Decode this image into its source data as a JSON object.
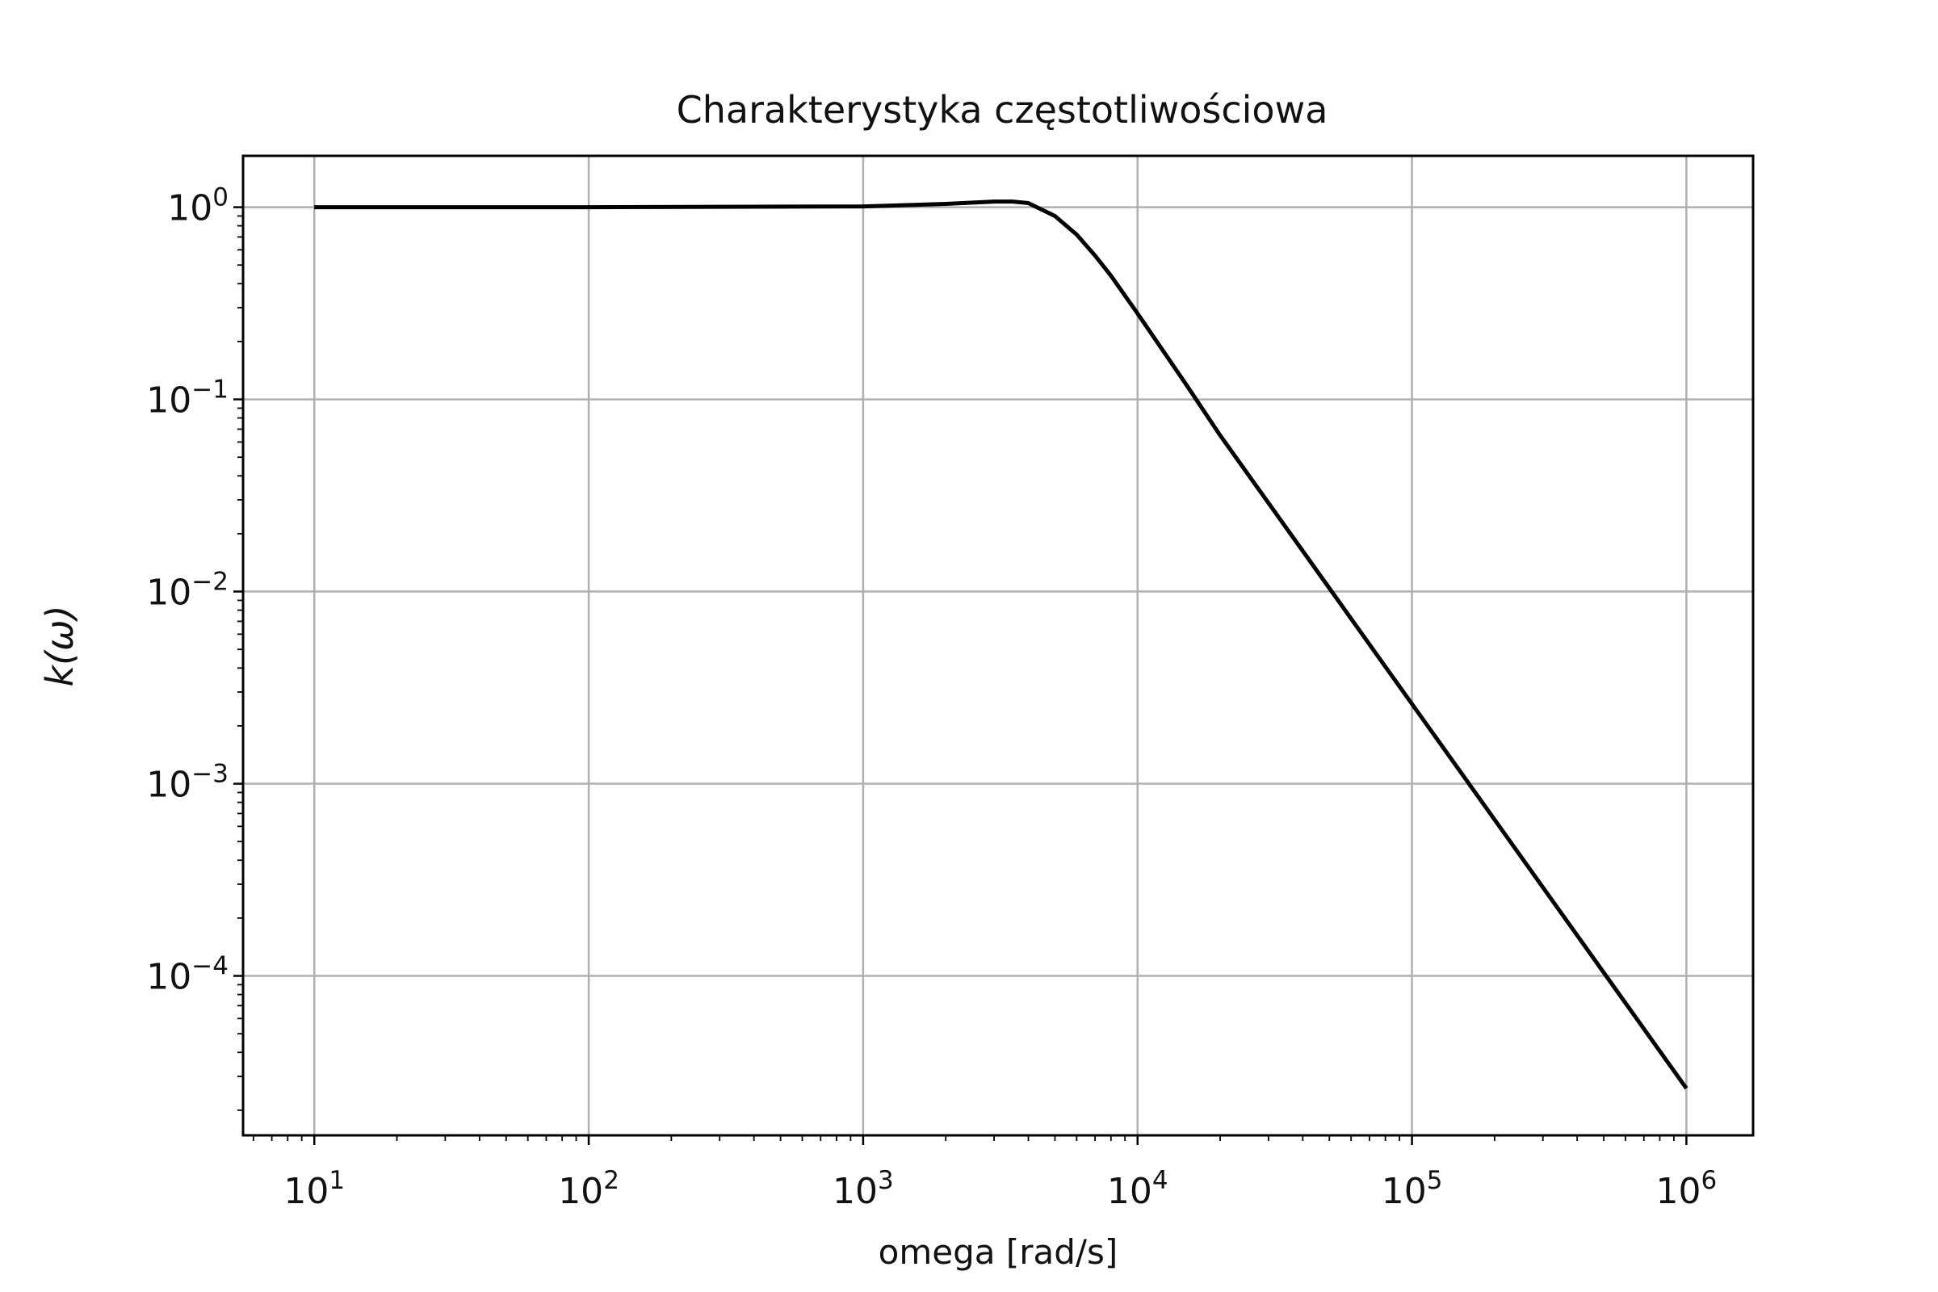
{
  "chart_data": {
    "type": "line",
    "title": "Charakterystyka częstotliwościowa",
    "xlabel": "omega [rad/s]",
    "ylabel": "k(ω)",
    "xscale": "log",
    "yscale": "log",
    "xlim": [
      5.5,
      1750000
    ],
    "ylim": [
      1.48e-05,
      1.85
    ],
    "x_ticks": [
      {
        "value": 10,
        "base": "10",
        "exp": "1"
      },
      {
        "value": 100,
        "base": "10",
        "exp": "2"
      },
      {
        "value": 1000,
        "base": "10",
        "exp": "3"
      },
      {
        "value": 10000,
        "base": "10",
        "exp": "4"
      },
      {
        "value": 100000,
        "base": "10",
        "exp": "5"
      },
      {
        "value": 1000000,
        "base": "10",
        "exp": "6"
      }
    ],
    "y_ticks": [
      {
        "value": 1,
        "base": "10",
        "exp": "0"
      },
      {
        "value": 0.1,
        "base": "10",
        "exp": "−1"
      },
      {
        "value": 0.01,
        "base": "10",
        "exp": "−2"
      },
      {
        "value": 0.001,
        "base": "10",
        "exp": "−3"
      },
      {
        "value": 0.0001,
        "base": "10",
        "exp": "−4"
      }
    ],
    "grid": true,
    "line_color": "#000000",
    "grid_color": "#b0b0b0",
    "series": [
      {
        "x": [
          10,
          100,
          1000,
          2000,
          3000,
          3500,
          4000,
          5000,
          6000,
          7000,
          8000,
          10000,
          15000,
          20000,
          50000,
          100000,
          200000,
          500000,
          1000000
        ],
        "y": [
          1.0,
          1.0,
          1.01,
          1.04,
          1.07,
          1.07,
          1.05,
          0.9,
          0.72,
          0.56,
          0.44,
          0.28,
          0.12,
          0.065,
          0.0104,
          0.0026,
          0.00065,
          0.000104,
          2.6e-05
        ]
      }
    ]
  }
}
